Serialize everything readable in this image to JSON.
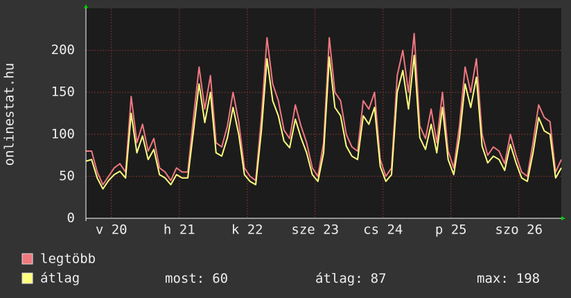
{
  "chart_data": {
    "type": "line",
    "y_label": "onlinestat.hu",
    "x": [
      0,
      2,
      4,
      6,
      8,
      10,
      12,
      14,
      16,
      18,
      20,
      22,
      24,
      26,
      28,
      30,
      32,
      34,
      36,
      38,
      40,
      42,
      44,
      46,
      48,
      50,
      52,
      54,
      56,
      58,
      60,
      62,
      64,
      66,
      68,
      70,
      72,
      74,
      76,
      78,
      80,
      82,
      84,
      86,
      88,
      90,
      92,
      94,
      96,
      98,
      100,
      102,
      104,
      106,
      108,
      110,
      112,
      114,
      116,
      118,
      120,
      122,
      124,
      126,
      128,
      130,
      132,
      134,
      136,
      138,
      140,
      142,
      144,
      146,
      148,
      150,
      152,
      154,
      156,
      158,
      160,
      162,
      164,
      166,
      168
    ],
    "xlim": [
      0,
      168
    ],
    "xticks": [
      {
        "value": 9,
        "label": "v 20"
      },
      {
        "value": 33,
        "label": "h 21"
      },
      {
        "value": 57,
        "label": "k 22"
      },
      {
        "value": 81,
        "label": "sze 23"
      },
      {
        "value": 105,
        "label": "cs 24"
      },
      {
        "value": 129,
        "label": "p 25"
      },
      {
        "value": 153,
        "label": "szo 26"
      }
    ],
    "ylim": [
      0,
      250
    ],
    "yticks": [
      0,
      50,
      100,
      150,
      200
    ],
    "grid": true,
    "series": [
      {
        "name": "legtöbb",
        "color": "#f07880",
        "values": [
          80,
          80,
          55,
          40,
          50,
          60,
          65,
          55,
          145,
          90,
          112,
          80,
          95,
          60,
          55,
          45,
          60,
          55,
          55,
          120,
          180,
          130,
          170,
          90,
          85,
          110,
          150,
          115,
          60,
          50,
          45,
          120,
          215,
          160,
          140,
          105,
          95,
          135,
          110,
          90,
          60,
          50,
          90,
          215,
          150,
          140,
          100,
          85,
          80,
          140,
          130,
          150,
          70,
          50,
          60,
          170,
          200,
          150,
          220,
          110,
          95,
          130,
          90,
          150,
          80,
          60,
          110,
          180,
          150,
          190,
          100,
          75,
          85,
          80,
          65,
          100,
          75,
          55,
          50,
          90,
          135,
          120,
          115,
          55,
          70
        ]
      },
      {
        "name": "átlag",
        "color": "#ffff80",
        "values": [
          68,
          70,
          48,
          35,
          45,
          52,
          56,
          48,
          125,
          78,
          98,
          70,
          82,
          52,
          48,
          40,
          52,
          48,
          48,
          104,
          160,
          114,
          150,
          78,
          74,
          96,
          132,
          100,
          52,
          44,
          40,
          104,
          190,
          140,
          122,
          92,
          84,
          118,
          96,
          78,
          52,
          44,
          78,
          192,
          132,
          122,
          86,
          74,
          70,
          122,
          112,
          132,
          62,
          44,
          52,
          150,
          176,
          130,
          194,
          96,
          82,
          112,
          78,
          132,
          70,
          52,
          96,
          160,
          132,
          168,
          86,
          66,
          74,
          70,
          57,
          88,
          66,
          48,
          44,
          78,
          120,
          104,
          100,
          48,
          60
        ]
      }
    ],
    "stats": [
      {
        "label": "most:",
        "value": 60
      },
      {
        "label": "átlag:",
        "value": 87
      },
      {
        "label": "max:",
        "value": 198
      }
    ]
  }
}
